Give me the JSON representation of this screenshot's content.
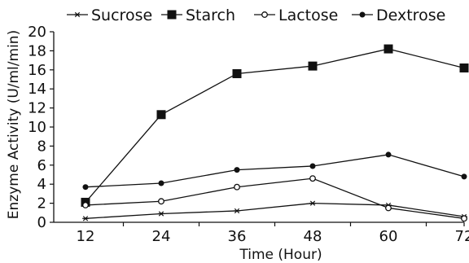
{
  "chart_data": {
    "type": "line",
    "x": [
      12,
      24,
      36,
      48,
      60,
      72
    ],
    "xlabel": "Time (Hour)",
    "ylabel": "Enzyme Activity (U/ml/min)",
    "ylim": [
      0,
      20
    ],
    "yticks": [
      0,
      2,
      4,
      6,
      8,
      10,
      12,
      14,
      16,
      18,
      20
    ],
    "grid": false,
    "legend_position": "top",
    "series": [
      {
        "name": "Sucrose",
        "marker": "asterisk",
        "color": "#111111",
        "values": [
          0.4,
          0.9,
          1.2,
          2.0,
          1.8,
          0.6
        ]
      },
      {
        "name": "Starch",
        "marker": "square",
        "color": "#111111",
        "values": [
          2.1,
          11.3,
          15.6,
          16.4,
          18.2,
          16.2
        ]
      },
      {
        "name": "Lactose",
        "marker": "open-circle",
        "color": "#111111",
        "values": [
          1.8,
          2.2,
          3.7,
          4.6,
          1.5,
          0.4
        ]
      },
      {
        "name": "Dextrose",
        "marker": "filled-circle",
        "color": "#111111",
        "values": [
          3.7,
          4.1,
          5.5,
          5.9,
          7.1,
          4.8
        ]
      }
    ]
  }
}
